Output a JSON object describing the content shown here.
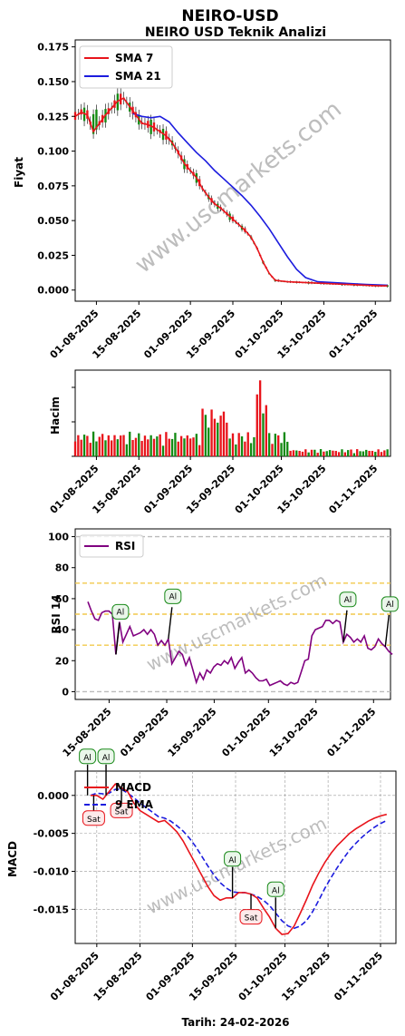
{
  "title": "NEIRO-USD",
  "subtitle": "NEIRO USD Teknik Analizi",
  "watermark": "www.uscmarkets.com",
  "footer": "Tarih: 24-02-2026",
  "colors": {
    "sma7": "#e8141b",
    "sma21": "#1c1cde",
    "up": "#138a13",
    "down": "#e8141b",
    "rsi": "#800080",
    "macd": "#e8141b",
    "ema": "#1c1cde",
    "band": "#f2c94c",
    "grid": "#999999",
    "buy": "#1a8a1a",
    "sell": "#e8141b"
  },
  "chart_data": [
    {
      "type": "candlestick",
      "ylabel": "Fiyat",
      "ylim": [
        -0.008,
        0.18
      ],
      "yticks": [
        "0.000",
        "0.025",
        "0.050",
        "0.075",
        "0.100",
        "0.125",
        "0.150",
        "0.175"
      ],
      "xlim": [
        "2025-07-25",
        "2025-11-06"
      ],
      "xticks": [
        "01-08-2025",
        "15-08-2025",
        "01-09-2025",
        "15-09-2025",
        "01-10-2025",
        "15-10-2025",
        "01-11-2025"
      ],
      "legend": [
        "SMA 7",
        "SMA 21"
      ],
      "legend_position": "upper-left",
      "sma7": [
        [
          0,
          0.125
        ],
        [
          2,
          0.128
        ],
        [
          4,
          0.126
        ],
        [
          5,
          0.12
        ],
        [
          6,
          0.114
        ],
        [
          8,
          0.12
        ],
        [
          10,
          0.126
        ],
        [
          12,
          0.131
        ],
        [
          14,
          0.136
        ],
        [
          16,
          0.138
        ],
        [
          18,
          0.132
        ],
        [
          20,
          0.126
        ],
        [
          22,
          0.12
        ],
        [
          24,
          0.119
        ],
        [
          26,
          0.117
        ],
        [
          28,
          0.114
        ],
        [
          30,
          0.111
        ],
        [
          32,
          0.106
        ],
        [
          34,
          0.099
        ],
        [
          36,
          0.091
        ],
        [
          38,
          0.086
        ],
        [
          40,
          0.081
        ],
        [
          42,
          0.073
        ],
        [
          44,
          0.067
        ],
        [
          46,
          0.062
        ],
        [
          48,
          0.059
        ],
        [
          50,
          0.055
        ],
        [
          52,
          0.051
        ],
        [
          54,
          0.047
        ],
        [
          56,
          0.043
        ],
        [
          58,
          0.038
        ],
        [
          60,
          0.03
        ],
        [
          62,
          0.02
        ],
        [
          64,
          0.012
        ],
        [
          66,
          0.007
        ],
        [
          70,
          0.006
        ],
        [
          80,
          0.005
        ],
        [
          90,
          0.004
        ],
        [
          100,
          0.003
        ],
        [
          103,
          0.003
        ]
      ],
      "sma21": [
        [
          19,
          0.127
        ],
        [
          22,
          0.125
        ],
        [
          25,
          0.124
        ],
        [
          28,
          0.125
        ],
        [
          31,
          0.121
        ],
        [
          34,
          0.113
        ],
        [
          37,
          0.106
        ],
        [
          40,
          0.099
        ],
        [
          43,
          0.093
        ],
        [
          46,
          0.086
        ],
        [
          49,
          0.08
        ],
        [
          52,
          0.074
        ],
        [
          55,
          0.068
        ],
        [
          58,
          0.061
        ],
        [
          61,
          0.053
        ],
        [
          64,
          0.044
        ],
        [
          67,
          0.034
        ],
        [
          70,
          0.024
        ],
        [
          73,
          0.015
        ],
        [
          76,
          0.009
        ],
        [
          80,
          0.006
        ],
        [
          88,
          0.005
        ],
        [
          96,
          0.004
        ],
        [
          103,
          0.0035
        ]
      ]
    },
    {
      "type": "bar",
      "ylabel": "Hacim",
      "xticks": [
        "01-08-2025",
        "15-08-2025",
        "01-09-2025",
        "15-09-2025",
        "01-10-2025",
        "15-10-2025",
        "01-11-2025"
      ]
    },
    {
      "type": "line",
      "ylabel": "RSI 14",
      "ylim": [
        -5,
        105
      ],
      "yticks": [
        "0",
        "20",
        "40",
        "60",
        "80",
        "100"
      ],
      "hlines": [
        100,
        70,
        50,
        30,
        0
      ],
      "xlim": [
        "2025-08-05",
        "2025-11-06"
      ],
      "xticks": [
        "15-08-2025",
        "01-09-2025",
        "15-09-2025",
        "01-10-2025",
        "15-10-2025",
        "01-11-2025"
      ],
      "legend": [
        "RSI"
      ],
      "legend_position": "upper-left",
      "series": [
        {
          "name": "RSI",
          "values": [
            [
              0,
              58
            ],
            [
              1,
              52
            ],
            [
              2,
              47
            ],
            [
              3,
              46
            ],
            [
              4,
              51
            ],
            [
              5,
              52
            ],
            [
              6,
              52
            ],
            [
              7,
              50
            ],
            [
              8,
              24
            ],
            [
              9,
              45
            ],
            [
              10,
              32
            ],
            [
              11,
              37
            ],
            [
              12,
              42
            ],
            [
              13,
              36
            ],
            [
              14,
              37
            ],
            [
              15,
              38
            ],
            [
              16,
              40
            ],
            [
              17,
              37
            ],
            [
              18,
              40
            ],
            [
              19,
              37
            ],
            [
              20,
              30
            ],
            [
              21,
              33
            ],
            [
              22,
              30
            ],
            [
              23,
              34
            ],
            [
              24,
              18
            ],
            [
              25,
              22
            ],
            [
              26,
              26
            ],
            [
              27,
              24
            ],
            [
              28,
              17
            ],
            [
              29,
              22
            ],
            [
              30,
              14
            ],
            [
              31,
              6
            ],
            [
              32,
              12
            ],
            [
              33,
              8
            ],
            [
              34,
              14
            ],
            [
              35,
              12
            ],
            [
              36,
              16
            ],
            [
              37,
              18
            ],
            [
              38,
              17
            ],
            [
              39,
              20
            ],
            [
              40,
              18
            ],
            [
              41,
              22
            ],
            [
              42,
              15
            ],
            [
              43,
              19
            ],
            [
              44,
              22
            ],
            [
              45,
              12
            ],
            [
              46,
              14
            ],
            [
              47,
              12
            ],
            [
              48,
              9
            ],
            [
              49,
              7
            ],
            [
              50,
              7
            ],
            [
              51,
              8
            ],
            [
              52,
              4
            ],
            [
              53,
              5
            ],
            [
              54,
              6
            ],
            [
              55,
              7
            ],
            [
              56,
              5
            ],
            [
              57,
              4
            ],
            [
              58,
              6
            ],
            [
              59,
              5
            ],
            [
              60,
              6
            ],
            [
              61,
              13
            ],
            [
              62,
              20
            ],
            [
              63,
              21
            ],
            [
              64,
              36
            ],
            [
              65,
              40
            ],
            [
              66,
              41
            ],
            [
              67,
              42
            ],
            [
              68,
              46
            ],
            [
              69,
              46
            ],
            [
              70,
              44
            ],
            [
              71,
              46
            ],
            [
              72,
              45
            ],
            [
              73,
              32
            ],
            [
              74,
              37
            ],
            [
              75,
              35
            ],
            [
              76,
              32
            ],
            [
              77,
              34
            ],
            [
              78,
              32
            ],
            [
              79,
              36
            ],
            [
              80,
              28
            ],
            [
              81,
              27
            ],
            [
              82,
              29
            ],
            [
              83,
              34
            ],
            [
              84,
              31
            ],
            [
              85,
              29
            ],
            [
              86,
              26
            ],
            [
              87,
              24
            ]
          ]
        }
      ],
      "annotations": [
        {
          "label": "Al",
          "x": 8
        },
        {
          "label": "Al",
          "x": 23
        },
        {
          "label": "Al",
          "x": 73
        },
        {
          "label": "Al",
          "x": 85
        }
      ]
    },
    {
      "type": "line",
      "ylabel": "MACD",
      "ylim": [
        -0.0195,
        0.0032
      ],
      "yticks": [
        "-0.015",
        "-0.010",
        "-0.005",
        "0.000"
      ],
      "xlim": [
        "2025-07-25",
        "2025-11-06"
      ],
      "xticks": [
        "01-08-2025",
        "15-08-2025",
        "01-09-2025",
        "15-09-2025",
        "01-10-2025",
        "15-10-2025",
        "01-11-2025"
      ],
      "legend": [
        "MACD",
        "9 EMA"
      ],
      "legend_position": "upper-left",
      "series": [
        {
          "name": "MACD",
          "values": [
            [
              5,
              0.0
            ],
            [
              7,
              0.0
            ],
            [
              9,
              -0.0005
            ],
            [
              11,
              0.0005
            ],
            [
              13,
              0.0015
            ],
            [
              15,
              0.001
            ],
            [
              17,
              0.0005
            ],
            [
              19,
              -0.001
            ],
            [
              21,
              -0.002
            ],
            [
              23,
              -0.0025
            ],
            [
              25,
              -0.003
            ],
            [
              27,
              -0.0035
            ],
            [
              29,
              -0.0033
            ],
            [
              31,
              -0.004
            ],
            [
              33,
              -0.0048
            ],
            [
              35,
              -0.006
            ],
            [
              37,
              -0.0075
            ],
            [
              39,
              -0.009
            ],
            [
              41,
              -0.0105
            ],
            [
              43,
              -0.012
            ],
            [
              45,
              -0.0132
            ],
            [
              47,
              -0.0138
            ],
            [
              49,
              -0.0135
            ],
            [
              51,
              -0.0135
            ],
            [
              53,
              -0.0128
            ],
            [
              55,
              -0.0128
            ],
            [
              57,
              -0.013
            ],
            [
              59,
              -0.0135
            ],
            [
              61,
              -0.0148
            ],
            [
              63,
              -0.016
            ],
            [
              65,
              -0.0175
            ],
            [
              67,
              -0.0183
            ],
            [
              69,
              -0.0182
            ],
            [
              71,
              -0.0172
            ],
            [
              73,
              -0.0155
            ],
            [
              75,
              -0.0137
            ],
            [
              77,
              -0.0118
            ],
            [
              79,
              -0.0102
            ],
            [
              81,
              -0.0088
            ],
            [
              83,
              -0.0076
            ],
            [
              85,
              -0.0066
            ],
            [
              87,
              -0.0058
            ],
            [
              89,
              -0.005
            ],
            [
              91,
              -0.0044
            ],
            [
              93,
              -0.0039
            ],
            [
              95,
              -0.0034
            ],
            [
              97,
              -0.003
            ],
            [
              99,
              -0.0027
            ],
            [
              101,
              -0.0025
            ]
          ]
        },
        {
          "name": "9 EMA",
          "values": [
            [
              5,
              0.0
            ],
            [
              7,
              0.0003
            ],
            [
              9,
              0.0002
            ],
            [
              11,
              0.0003
            ],
            [
              13,
              0.0008
            ],
            [
              15,
              0.0008
            ],
            [
              17,
              0.0003
            ],
            [
              19,
              -0.0003
            ],
            [
              21,
              -0.001
            ],
            [
              23,
              -0.0016
            ],
            [
              25,
              -0.0022
            ],
            [
              27,
              -0.0028
            ],
            [
              29,
              -0.003
            ],
            [
              31,
              -0.0034
            ],
            [
              33,
              -0.004
            ],
            [
              35,
              -0.0047
            ],
            [
              37,
              -0.0056
            ],
            [
              39,
              -0.0067
            ],
            [
              41,
              -0.008
            ],
            [
              43,
              -0.0093
            ],
            [
              45,
              -0.0105
            ],
            [
              47,
              -0.0115
            ],
            [
              49,
              -0.0122
            ],
            [
              51,
              -0.0127
            ],
            [
              53,
              -0.0128
            ],
            [
              55,
              -0.0128
            ],
            [
              57,
              -0.013
            ],
            [
              59,
              -0.0133
            ],
            [
              61,
              -0.0138
            ],
            [
              63,
              -0.0145
            ],
            [
              65,
              -0.0155
            ],
            [
              67,
              -0.0165
            ],
            [
              69,
              -0.0172
            ],
            [
              71,
              -0.0175
            ],
            [
              73,
              -0.0172
            ],
            [
              75,
              -0.0165
            ],
            [
              77,
              -0.0153
            ],
            [
              79,
              -0.0138
            ],
            [
              81,
              -0.0122
            ],
            [
              83,
              -0.0108
            ],
            [
              85,
              -0.0095
            ],
            [
              87,
              -0.0083
            ],
            [
              89,
              -0.0072
            ],
            [
              91,
              -0.0063
            ],
            [
              93,
              -0.0055
            ],
            [
              95,
              -0.0048
            ],
            [
              97,
              -0.0042
            ],
            [
              99,
              -0.0037
            ],
            [
              101,
              -0.0033
            ]
          ]
        }
      ],
      "annotations": [
        {
          "label": "Al",
          "x": 4
        },
        {
          "label": "Sat",
          "x": 6
        },
        {
          "label": "Al",
          "x": 10
        },
        {
          "label": "Sat",
          "x": 15
        },
        {
          "label": "Al",
          "x": 51
        },
        {
          "label": "Sat",
          "x": 57
        },
        {
          "label": "Al",
          "x": 65
        }
      ]
    }
  ]
}
